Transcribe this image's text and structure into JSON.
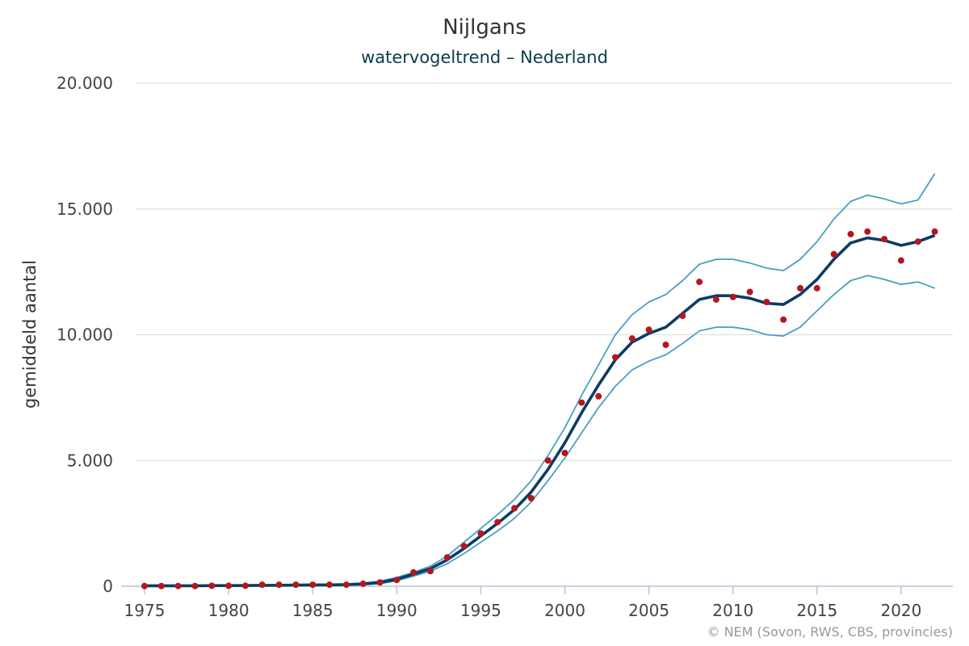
{
  "chart_data": {
    "type": "line",
    "title": "Nijlgans",
    "subtitle": "watervogeltrend – Nederland",
    "ylabel": "gemiddeld aantal",
    "xlabel": "",
    "credit": "© NEM (Sovon, RWS, CBS, provincies)",
    "xlim": [
      1975,
      2022.5
    ],
    "ylim": [
      0,
      20000
    ],
    "x_ticks": [
      1975,
      1980,
      1985,
      1990,
      1995,
      2000,
      2005,
      2010,
      2015,
      2020
    ],
    "y_ticks": [
      0,
      5000,
      10000,
      15000,
      20000
    ],
    "y_tick_labels": [
      "0",
      "5.000",
      "10.000",
      "15.000",
      "20.000"
    ],
    "grid": true,
    "colors": {
      "trend": "#0d3b66",
      "bounds": "#4a9fc0",
      "index": "#b5161e",
      "grid": "#e0e0e0",
      "axis": "#b8c4d8"
    },
    "x": [
      1975,
      1976,
      1977,
      1978,
      1979,
      1980,
      1981,
      1982,
      1983,
      1984,
      1985,
      1986,
      1987,
      1988,
      1989,
      1990,
      1991,
      1992,
      1993,
      1994,
      1995,
      1996,
      1997,
      1998,
      1999,
      2000,
      2001,
      2002,
      2003,
      2004,
      2005,
      2006,
      2007,
      2008,
      2009,
      2010,
      2011,
      2012,
      2013,
      2014,
      2015,
      2016,
      2017,
      2018,
      2019,
      2020,
      2021,
      2022
    ],
    "series": [
      {
        "role": "index_points",
        "values": [
          10,
          10,
          10,
          10,
          20,
          20,
          20,
          60,
          60,
          60,
          60,
          60,
          60,
          100,
          150,
          250,
          550,
          600,
          1150,
          1600,
          2100,
          2550,
          3100,
          3500,
          5000,
          5300,
          7300,
          7550,
          9100,
          9850,
          10200,
          9600,
          10750,
          12100,
          11400,
          11500,
          11700,
          11300,
          10600,
          11850,
          11850,
          13200,
          14000,
          14100,
          13800,
          12950,
          13700,
          14100
        ]
      },
      {
        "role": "trend",
        "values": [
          20,
          20,
          20,
          20,
          25,
          25,
          30,
          35,
          40,
          45,
          50,
          55,
          65,
          90,
          150,
          280,
          480,
          700,
          1050,
          1500,
          2000,
          2500,
          3050,
          3750,
          4650,
          5700,
          6900,
          8000,
          9000,
          9700,
          10050,
          10300,
          10850,
          11400,
          11550,
          11550,
          11450,
          11250,
          11200,
          11600,
          12200,
          13000,
          13650,
          13850,
          13750,
          13550,
          13700,
          13950
        ]
      },
      {
        "role": "upper_bound",
        "values": [
          40,
          40,
          40,
          40,
          45,
          45,
          50,
          55,
          60,
          70,
          75,
          80,
          95,
          130,
          200,
          350,
          550,
          800,
          1200,
          1750,
          2300,
          2850,
          3450,
          4200,
          5200,
          6300,
          7600,
          8800,
          10000,
          10800,
          11300,
          11600,
          12150,
          12800,
          13000,
          13000,
          12850,
          12650,
          12550,
          13000,
          13700,
          14600,
          15300,
          15550,
          15400,
          15200,
          15350,
          16400
        ]
      },
      {
        "role": "lower_bound",
        "values": [
          5,
          5,
          5,
          5,
          10,
          10,
          10,
          15,
          20,
          25,
          30,
          35,
          40,
          60,
          100,
          220,
          400,
          600,
          900,
          1300,
          1750,
          2200,
          2700,
          3350,
          4200,
          5100,
          6100,
          7100,
          7950,
          8600,
          8950,
          9200,
          9650,
          10150,
          10300,
          10300,
          10200,
          10000,
          9950,
          10300,
          10950,
          11600,
          12150,
          12350,
          12200,
          12000,
          12100,
          11850
        ]
      }
    ]
  }
}
